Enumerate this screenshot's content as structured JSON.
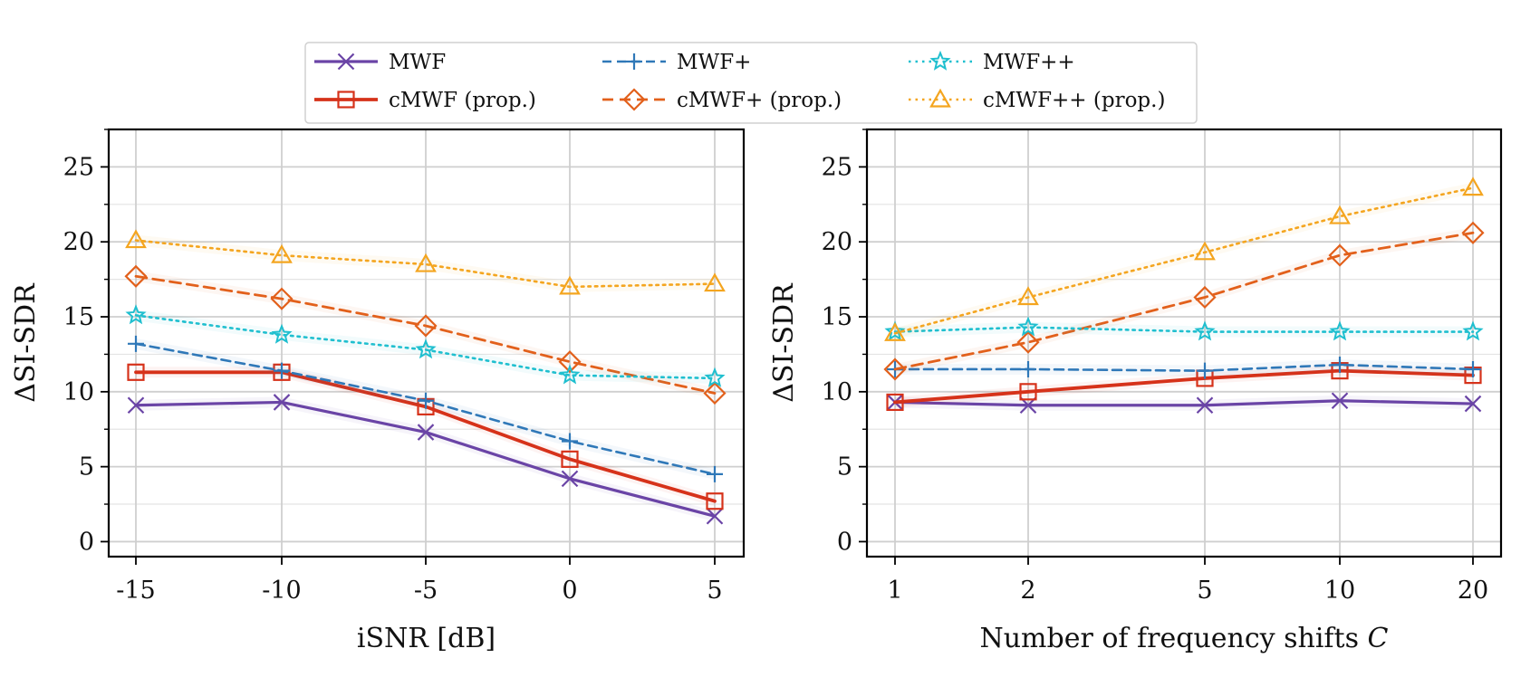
{
  "legend": {
    "entries": [
      {
        "label": "MWF",
        "series": "mwf"
      },
      {
        "label": "MWF+",
        "series": "mwfp"
      },
      {
        "label": "MWF++",
        "series": "mwfpp"
      },
      {
        "label": "cMWF (prop.)",
        "series": "cmwf"
      },
      {
        "label": "cMWF+ (prop.)",
        "series": "cmwfp"
      },
      {
        "label": "cMWF++ (prop.)",
        "series": "cmwfpp"
      }
    ],
    "placement": "top-center",
    "columns": 3
  },
  "series_styles": {
    "mwf": {
      "color": "#6a44a6",
      "dash": "",
      "width": 3.2,
      "marker": "x"
    },
    "cmwf": {
      "color": "#d6321a",
      "dash": "",
      "width": 3.8,
      "marker": "square"
    },
    "mwfp": {
      "color": "#2f78b8",
      "dash": "10,6",
      "width": 2.6,
      "marker": "plus"
    },
    "cmwfp": {
      "color": "#e2601b",
      "dash": "12,7",
      "width": 2.8,
      "marker": "diamond"
    },
    "mwfpp": {
      "color": "#1fbfcf",
      "dash": "2.5,5",
      "width": 2.6,
      "marker": "star"
    },
    "cmwfpp": {
      "color": "#f4a51f",
      "dash": "2.5,5",
      "width": 2.6,
      "marker": "triangle"
    }
  },
  "chart_data": [
    {
      "type": "line",
      "xlabel": "iSNR [dB]",
      "ylabel": "ΔSI-SDR",
      "x": [
        -15,
        -10,
        -5,
        0,
        5
      ],
      "x_tick_labels": [
        "-15",
        "-10",
        "-5",
        "0",
        "5"
      ],
      "xlim": [
        -16,
        6
      ],
      "ylim": [
        -1,
        27.5
      ],
      "y_ticks": [
        0,
        5,
        10,
        15,
        20,
        25
      ],
      "y_tick_labels": [
        "0",
        "5",
        "10",
        "15",
        "20",
        "25"
      ],
      "grid": true,
      "series": [
        {
          "name": "MWF",
          "key": "mwf",
          "values": [
            9.1,
            9.3,
            7.3,
            4.2,
            1.7
          ]
        },
        {
          "name": "cMWF (prop.)",
          "key": "cmwf",
          "values": [
            11.3,
            11.3,
            9.0,
            5.5,
            2.7
          ]
        },
        {
          "name": "MWF+",
          "key": "mwfp",
          "values": [
            13.2,
            11.4,
            9.4,
            6.7,
            4.5
          ]
        },
        {
          "name": "cMWF+ (prop.)",
          "key": "cmwfp",
          "values": [
            17.7,
            16.2,
            14.4,
            12.0,
            9.9
          ]
        },
        {
          "name": "MWF++",
          "key": "mwfpp",
          "values": [
            15.1,
            13.8,
            12.8,
            11.1,
            10.9
          ]
        },
        {
          "name": "cMWF++ (prop.)",
          "key": "cmwfpp",
          "values": [
            20.1,
            19.1,
            18.5,
            17.0,
            17.2
          ]
        }
      ]
    },
    {
      "type": "line",
      "xlabel": "Number of frequency shifts C",
      "ylabel": "ΔSI-SDR",
      "x": [
        1,
        2,
        5,
        10,
        20
      ],
      "x_tick_labels": [
        "1",
        "2",
        "5",
        "10",
        "20"
      ],
      "x_scale": "categorical",
      "ylim": [
        -1,
        27.5
      ],
      "y_ticks": [
        0,
        5,
        10,
        15,
        20,
        25
      ],
      "y_tick_labels": [
        "0",
        "5",
        "10",
        "15",
        "20",
        "25"
      ],
      "grid": true,
      "series": [
        {
          "name": "MWF",
          "key": "mwf",
          "values": [
            9.3,
            9.1,
            9.1,
            9.4,
            9.2
          ]
        },
        {
          "name": "cMWF (prop.)",
          "key": "cmwf",
          "values": [
            9.3,
            10.0,
            10.9,
            11.4,
            11.1
          ]
        },
        {
          "name": "MWF+",
          "key": "mwfp",
          "values": [
            11.5,
            11.5,
            11.4,
            11.8,
            11.5
          ]
        },
        {
          "name": "cMWF+ (prop.)",
          "key": "cmwfp",
          "values": [
            11.5,
            13.3,
            16.3,
            19.1,
            20.6
          ]
        },
        {
          "name": "MWF++",
          "key": "mwfpp",
          "values": [
            14.0,
            14.3,
            14.0,
            14.0,
            14.0
          ]
        },
        {
          "name": "cMWF++ (prop.)",
          "key": "cmwfpp",
          "values": [
            13.9,
            16.3,
            19.3,
            21.7,
            23.6
          ]
        }
      ]
    }
  ]
}
